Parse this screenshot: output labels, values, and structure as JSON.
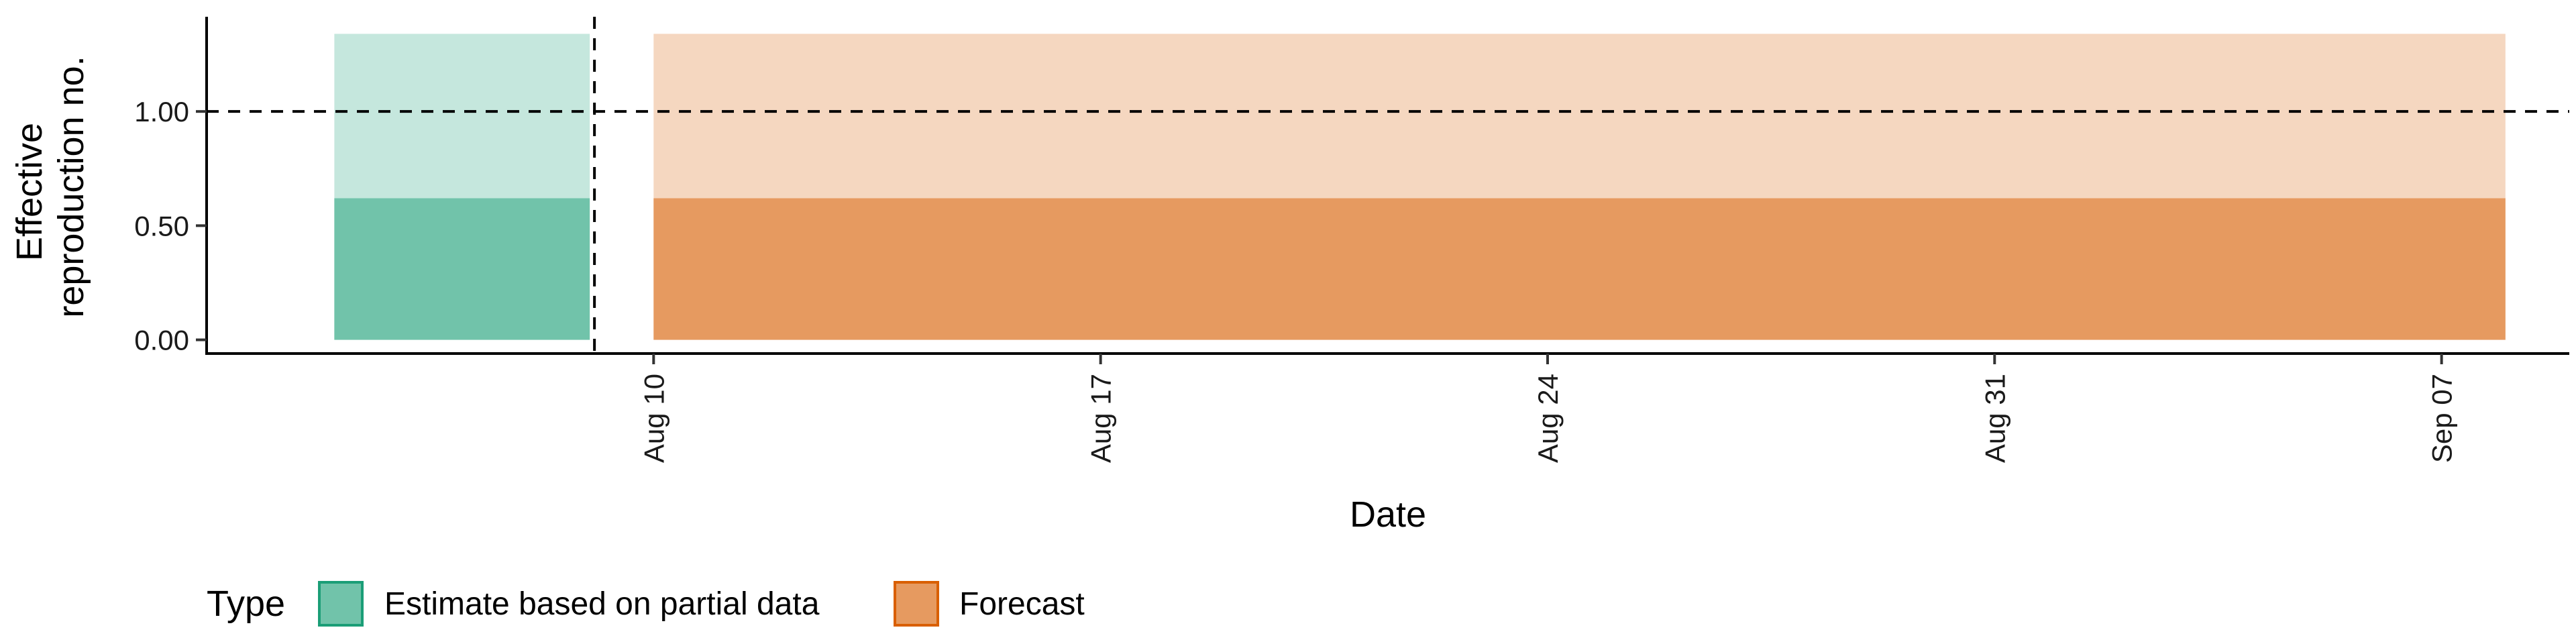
{
  "chart_data": {
    "type": "area",
    "xlabel": "Date",
    "ylabel_lines": [
      "Effective",
      "reproduction no."
    ],
    "y_ticks": [
      {
        "value": 0.0,
        "label": "0.00"
      },
      {
        "value": 0.5,
        "label": "0.50"
      },
      {
        "value": 1.0,
        "label": "1.00"
      }
    ],
    "ylim": [
      -0.06,
      1.4
    ],
    "x_ticks": [
      {
        "date": "2020-08-10",
        "label": "Aug 10"
      },
      {
        "date": "2020-08-17",
        "label": "Aug 17"
      },
      {
        "date": "2020-08-24",
        "label": "Aug 24"
      },
      {
        "date": "2020-08-31",
        "label": "Aug 31"
      },
      {
        "date": "2020-09-07",
        "label": "Sep 07"
      }
    ],
    "xlim": [
      "2020-08-03",
      "2020-09-09"
    ],
    "reference_line_y": 1.0,
    "reference_line_date": "2020-08-09",
    "series": [
      {
        "name": "Estimate based on partial data",
        "color": "#1b9e77",
        "fill": "#71c3aa",
        "fill_light": "#c5e7dd",
        "start": "2020-08-05",
        "end": "2020-08-09",
        "inner_upper": 0.62,
        "outer_upper": 1.34,
        "lower": 0.0
      },
      {
        "name": "Forecast",
        "color": "#d95f02",
        "fill": "#e69a60",
        "fill_light": "#f5d7c0",
        "start": "2020-08-10",
        "end": "2020-09-08",
        "inner_upper": 0.62,
        "outer_upper": 1.34,
        "lower": 0.0
      }
    ],
    "legend": {
      "title": "Type",
      "position": "bottom",
      "items": [
        "Estimate based on partial data",
        "Forecast"
      ]
    }
  }
}
